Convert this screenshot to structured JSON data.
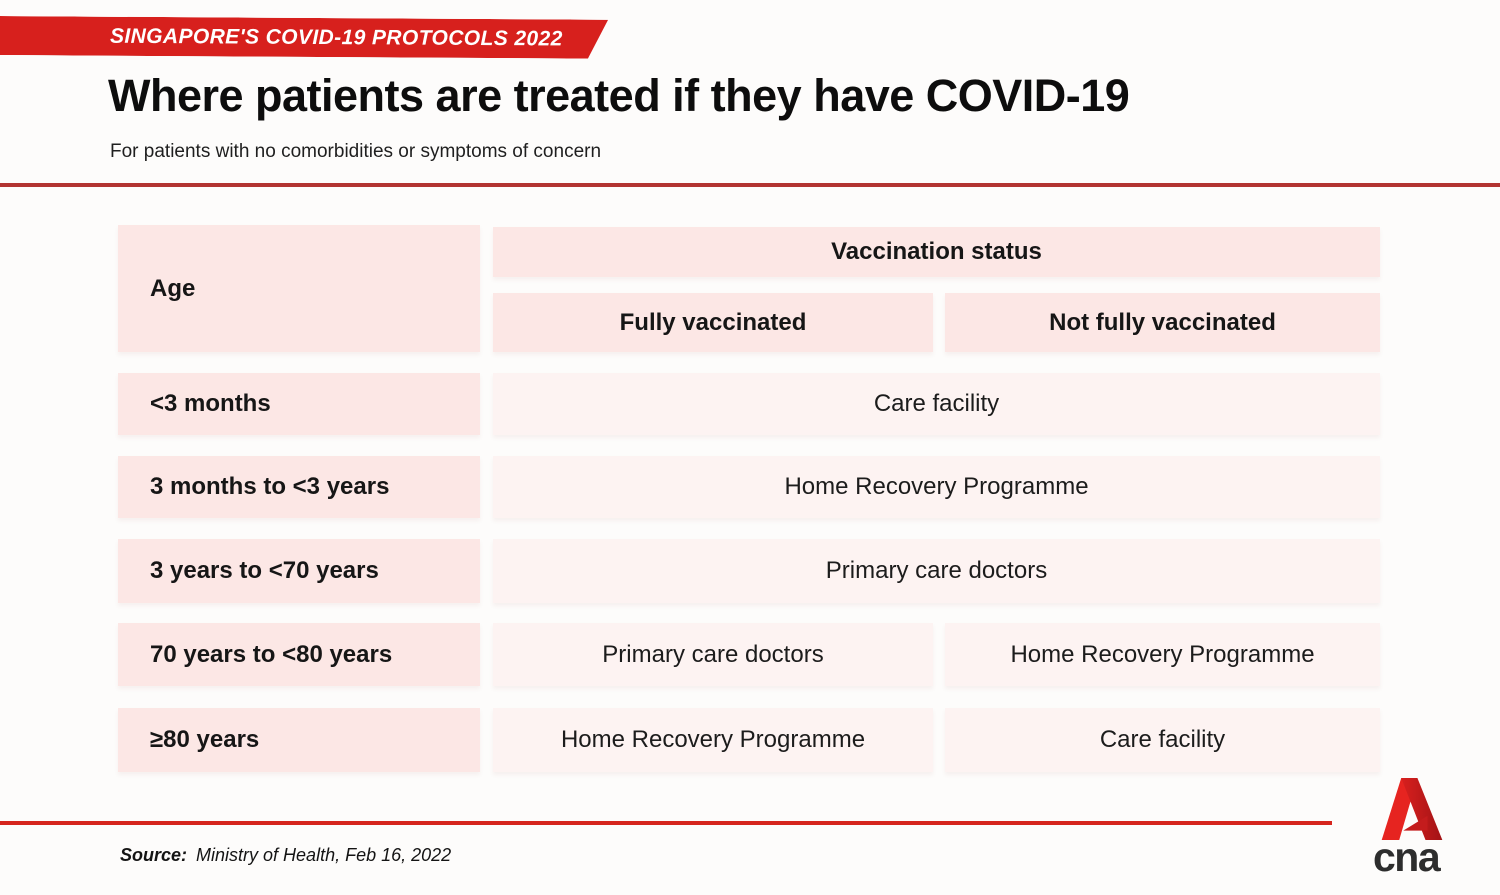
{
  "banner": {
    "label": "SINGAPORE'S COVID-19 PROTOCOLS 2022"
  },
  "header": {
    "title": "Where patients are treated if they have COVID-19",
    "subtitle": "For patients with no comorbidities or symptoms of concern"
  },
  "table": {
    "age_header": "Age",
    "vaccination_header": "Vaccination status",
    "col_fully": "Fully vaccinated",
    "col_not_fully": "Not fully vaccinated",
    "rows": [
      {
        "age": "<3 months",
        "value": "Care facility",
        "span": true
      },
      {
        "age": "3 months to <3 years",
        "value": "Home Recovery Programme",
        "span": true
      },
      {
        "age": "3 years to <70 years",
        "value": "Primary care doctors",
        "span": true
      },
      {
        "age": "70 years to <80 years",
        "fully": "Primary care doctors",
        "not_fully": "Home Recovery Programme",
        "span": false
      },
      {
        "age": "≥80 years",
        "fully": "Home Recovery Programme",
        "not_fully": "Care facility",
        "span": false
      }
    ]
  },
  "footer": {
    "source_label": "Source:",
    "source_text": "Ministry of Health, Feb 16, 2022"
  },
  "logo": {
    "text": "cna",
    "mark": "cna-a-mark"
  },
  "colors": {
    "ribbon_red": "#d7201d",
    "rule_top_red": "#b23431",
    "rule_bottom_red": "#d6251d",
    "header_pink": "#fce7e5",
    "value_pink": "#fdf3f2",
    "text": "#161616"
  },
  "chart_data": {
    "type": "table",
    "title": "Where patients are treated if they have COVID-19",
    "subtitle": "For patients with no comorbidities or symptoms of concern",
    "columns": [
      "Age",
      "Fully vaccinated",
      "Not fully vaccinated"
    ],
    "rows": [
      [
        "<3 months",
        "Care facility",
        "Care facility"
      ],
      [
        "3 months to <3 years",
        "Home Recovery Programme",
        "Home Recovery Programme"
      ],
      [
        "3 years to <70 years",
        "Primary care doctors",
        "Primary care doctors"
      ],
      [
        "70 years to <80 years",
        "Primary care doctors",
        "Home Recovery Programme"
      ],
      [
        "≥80 years",
        "Home Recovery Programme",
        "Care facility"
      ]
    ],
    "layout_hints": "Rows 1-3 span both vaccination-status columns; 'Vaccination status' is a merged header over the two right columns",
    "source": "Ministry of Health, Feb 16, 2022"
  }
}
